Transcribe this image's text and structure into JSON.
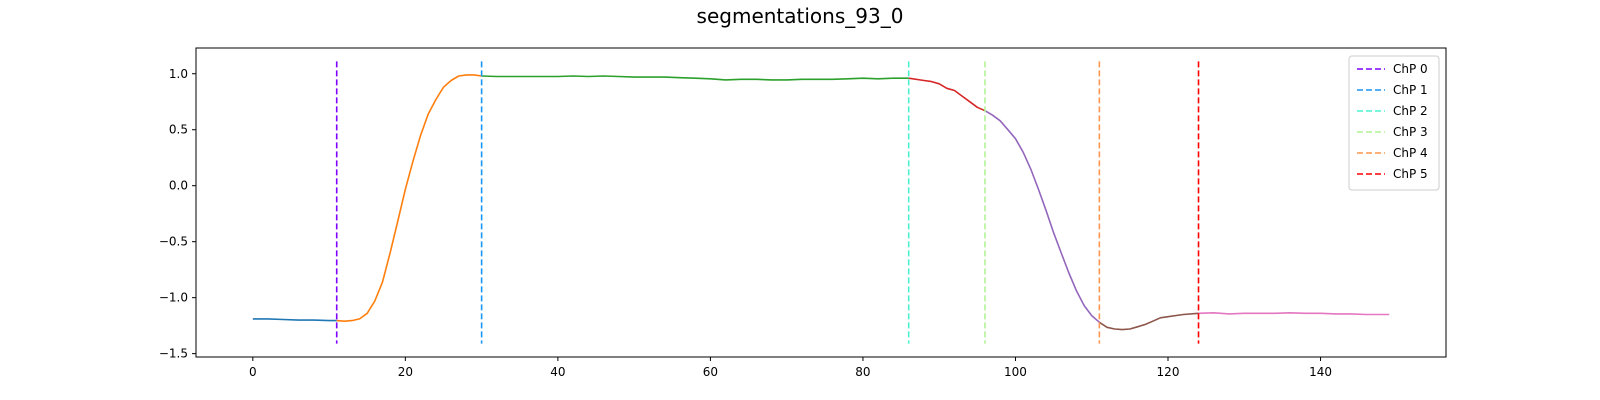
{
  "chart_data": {
    "type": "line",
    "title": "segmentations_93_0",
    "xlabel": "",
    "ylabel": "",
    "xlim": [
      -7.45,
      156.45
    ],
    "ylim": [
      -1.53,
      1.23
    ],
    "xticks": [
      0,
      20,
      40,
      60,
      80,
      100,
      120,
      140
    ],
    "yticks": [
      -1.5,
      -1.0,
      -0.5,
      0.0,
      0.5,
      1.0
    ],
    "ytick_labels": [
      "−1.5",
      "−1.0",
      "−0.5",
      "0.0",
      "0.5",
      "1.0"
    ],
    "grid": false,
    "legend_position": "top-right",
    "segments": [
      {
        "color": "#1f77b4",
        "points": [
          [
            0,
            -1.19
          ],
          [
            2,
            -1.19
          ],
          [
            4,
            -1.195
          ],
          [
            6,
            -1.2
          ],
          [
            8,
            -1.2
          ],
          [
            10,
            -1.205
          ],
          [
            11,
            -1.205
          ]
        ]
      },
      {
        "color": "#ff7f0e",
        "points": [
          [
            11,
            -1.205
          ],
          [
            12,
            -1.21
          ],
          [
            13,
            -1.205
          ],
          [
            14,
            -1.19
          ],
          [
            15,
            -1.14
          ],
          [
            16,
            -1.03
          ],
          [
            17,
            -0.86
          ],
          [
            18,
            -0.6
          ],
          [
            19,
            -0.32
          ],
          [
            20,
            -0.03
          ],
          [
            21,
            0.22
          ],
          [
            22,
            0.45
          ],
          [
            23,
            0.64
          ],
          [
            24,
            0.77
          ],
          [
            25,
            0.88
          ],
          [
            26,
            0.94
          ],
          [
            27,
            0.98
          ],
          [
            28,
            0.99
          ],
          [
            29,
            0.99
          ],
          [
            30,
            0.98
          ]
        ]
      },
      {
        "color": "#2ca02c",
        "points": [
          [
            30,
            0.98
          ],
          [
            32,
            0.975
          ],
          [
            34,
            0.975
          ],
          [
            36,
            0.975
          ],
          [
            38,
            0.975
          ],
          [
            40,
            0.975
          ],
          [
            42,
            0.98
          ],
          [
            44,
            0.975
          ],
          [
            46,
            0.98
          ],
          [
            48,
            0.975
          ],
          [
            50,
            0.97
          ],
          [
            52,
            0.97
          ],
          [
            54,
            0.97
          ],
          [
            56,
            0.965
          ],
          [
            58,
            0.96
          ],
          [
            60,
            0.955
          ],
          [
            62,
            0.945
          ],
          [
            64,
            0.95
          ],
          [
            66,
            0.95
          ],
          [
            68,
            0.945
          ],
          [
            70,
            0.945
          ],
          [
            72,
            0.95
          ],
          [
            74,
            0.95
          ],
          [
            76,
            0.95
          ],
          [
            78,
            0.955
          ],
          [
            80,
            0.96
          ],
          [
            82,
            0.955
          ],
          [
            84,
            0.96
          ],
          [
            86,
            0.96
          ]
        ]
      },
      {
        "color": "#d62728",
        "points": [
          [
            86,
            0.96
          ],
          [
            88,
            0.94
          ],
          [
            89,
            0.93
          ],
          [
            90,
            0.91
          ],
          [
            91,
            0.87
          ],
          [
            92,
            0.85
          ],
          [
            93,
            0.8
          ],
          [
            94,
            0.75
          ],
          [
            95,
            0.7
          ],
          [
            96,
            0.67
          ]
        ]
      },
      {
        "color": "#9467bd",
        "points": [
          [
            96,
            0.67
          ],
          [
            97,
            0.63
          ],
          [
            98,
            0.58
          ],
          [
            99,
            0.5
          ],
          [
            100,
            0.42
          ],
          [
            101,
            0.3
          ],
          [
            102,
            0.15
          ],
          [
            103,
            -0.03
          ],
          [
            104,
            -0.22
          ],
          [
            105,
            -0.42
          ],
          [
            106,
            -0.6
          ],
          [
            107,
            -0.78
          ],
          [
            108,
            -0.94
          ],
          [
            109,
            -1.07
          ],
          [
            110,
            -1.16
          ],
          [
            111,
            -1.22
          ]
        ]
      },
      {
        "color": "#8c564b",
        "points": [
          [
            111,
            -1.22
          ],
          [
            112,
            -1.265
          ],
          [
            113,
            -1.28
          ],
          [
            114,
            -1.285
          ],
          [
            115,
            -1.28
          ],
          [
            116,
            -1.26
          ],
          [
            117,
            -1.24
          ],
          [
            118,
            -1.21
          ],
          [
            119,
            -1.18
          ],
          [
            120,
            -1.17
          ],
          [
            122,
            -1.15
          ],
          [
            124,
            -1.14
          ]
        ]
      },
      {
        "color": "#e377c2",
        "points": [
          [
            124,
            -1.14
          ],
          [
            126,
            -1.135
          ],
          [
            128,
            -1.145
          ],
          [
            130,
            -1.14
          ],
          [
            132,
            -1.14
          ],
          [
            134,
            -1.14
          ],
          [
            136,
            -1.135
          ],
          [
            138,
            -1.14
          ],
          [
            140,
            -1.14
          ],
          [
            142,
            -1.145
          ],
          [
            144,
            -1.145
          ],
          [
            146,
            -1.15
          ],
          [
            148,
            -1.15
          ],
          [
            149,
            -1.15
          ]
        ]
      }
    ],
    "changepoints": [
      {
        "name": "ChP 0",
        "x": 11,
        "color": "#8000ff"
      },
      {
        "name": "ChP 1",
        "x": 30,
        "color": "#1996f3"
      },
      {
        "name": "ChP 2",
        "x": 86,
        "color": "#4cf2ce"
      },
      {
        "name": "ChP 3",
        "x": 96,
        "color": "#b2f396"
      },
      {
        "name": "ChP 4",
        "x": 111,
        "color": "#ff964f"
      },
      {
        "name": "ChP 5",
        "x": 124,
        "color": "#ff0000"
      }
    ],
    "changepoint_yrange": [
      -1.41,
      1.11
    ]
  }
}
